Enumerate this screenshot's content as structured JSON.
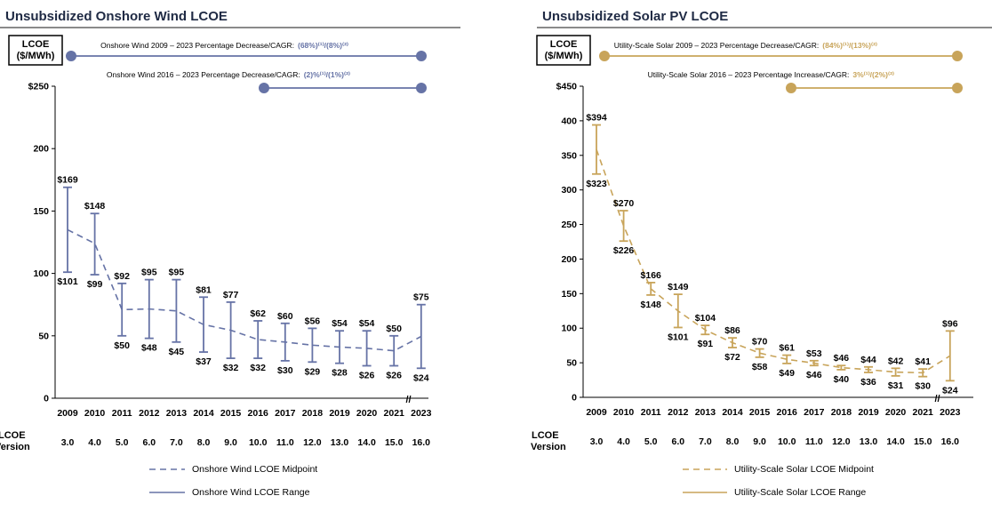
{
  "chart_data": [
    {
      "type": "range",
      "title": "Unsubsidized Onshore Wind LCOE",
      "ylabel": "LCOE ($/MWh)",
      "xlabel": "LCOE Version",
      "ylim": [
        0,
        250
      ],
      "yticks": [
        0,
        50,
        100,
        150,
        200,
        250
      ],
      "ytick_labels": [
        "0",
        "50",
        "100",
        "150",
        "200",
        "$250"
      ],
      "categories": [
        "2009",
        "2010",
        "2011",
        "2012",
        "2013",
        "2014",
        "2015",
        "2016",
        "2017",
        "2018",
        "2019",
        "2020",
        "2021",
        "2023"
      ],
      "versions": [
        "3.0",
        "4.0",
        "5.0",
        "6.0",
        "7.0",
        "8.0",
        "9.0",
        "10.0",
        "11.0",
        "12.0",
        "13.0",
        "14.0",
        "15.0",
        "16.0"
      ],
      "high": [
        169,
        148,
        92,
        95,
        95,
        81,
        77,
        62,
        60,
        56,
        54,
        54,
        50,
        75
      ],
      "low": [
        101,
        99,
        50,
        48,
        45,
        37,
        32,
        32,
        30,
        29,
        28,
        26,
        26,
        24
      ],
      "midpoint": [
        135,
        124,
        71,
        71.5,
        70,
        59,
        54.5,
        47,
        45,
        42.5,
        41,
        40,
        38,
        49.5
      ],
      "high_labels": [
        "$169",
        "$148",
        "$92",
        "$95",
        "$95",
        "$81",
        "$77",
        "$62",
        "$60",
        "$56",
        "$54",
        "$54",
        "$50",
        "$75"
      ],
      "low_labels": [
        "$101",
        "$99",
        "$50",
        "$48",
        "$45",
        "$37",
        "$32",
        "$32",
        "$30",
        "$29",
        "$28",
        "$26",
        "$26",
        "$24"
      ],
      "color": "#6673a6",
      "axis_break": "//",
      "legend": [
        "Onshore Wind LCOE Midpoint",
        "Onshore Wind LCOE Range"
      ],
      "annotations": [
        {
          "text": "Onshore Wind 2009 – 2023 Percentage Decrease/CAGR:",
          "value": "(68%)⁽¹⁾/(8%)⁽²⁾"
        },
        {
          "text": "Onshore Wind 2016 – 2023 Percentage Decrease/CAGR:",
          "value": "(2)%⁽¹⁾/(1%)⁽²⁾"
        }
      ]
    },
    {
      "type": "range",
      "title": "Unsubsidized Solar PV LCOE",
      "ylabel": "LCOE ($/MWh)",
      "xlabel": "LCOE Version",
      "ylim": [
        0,
        450
      ],
      "yticks": [
        0,
        50,
        100,
        150,
        200,
        250,
        300,
        350,
        400,
        450
      ],
      "ytick_labels": [
        "0",
        "50",
        "100",
        "150",
        "200",
        "250",
        "300",
        "350",
        "400",
        "$450"
      ],
      "categories": [
        "2009",
        "2010",
        "2011",
        "2012",
        "2013",
        "2014",
        "2015",
        "2016",
        "2017",
        "2018",
        "2019",
        "2020",
        "2021",
        "2023"
      ],
      "versions": [
        "3.0",
        "4.0",
        "5.0",
        "6.0",
        "7.0",
        "8.0",
        "9.0",
        "10.0",
        "11.0",
        "12.0",
        "13.0",
        "14.0",
        "15.0",
        "16.0"
      ],
      "high": [
        394,
        270,
        166,
        149,
        104,
        86,
        70,
        61,
        53,
        46,
        44,
        42,
        41,
        96
      ],
      "low": [
        323,
        226,
        148,
        101,
        91,
        72,
        58,
        49,
        46,
        40,
        36,
        31,
        30,
        24
      ],
      "midpoint": [
        358.5,
        248,
        157,
        125,
        97.5,
        79,
        64,
        55,
        49.5,
        43,
        40,
        36.5,
        35.5,
        60
      ],
      "high_labels": [
        "$394",
        "$270",
        "$166",
        "$149",
        "$104",
        "$86",
        "$70",
        "$61",
        "$53",
        "$46",
        "$44",
        "$42",
        "$41",
        "$96"
      ],
      "low_labels": [
        "$323",
        "$226",
        "$148",
        "$101",
        "$91",
        "$72",
        "$58",
        "$49",
        "$46",
        "$40",
        "$36",
        "$31",
        "$30",
        "$24"
      ],
      "color": "#c8a45a",
      "axis_break": "//",
      "legend": [
        "Utility-Scale Solar LCOE Midpoint",
        "Utility-Scale Solar LCOE Range"
      ],
      "annotations": [
        {
          "text": "Utility-Scale Solar 2009 – 2023 Percentage Decrease/CAGR:",
          "value": "(84%)⁽¹⁾/(13%)⁽²⁾"
        },
        {
          "text": "Utility-Scale Solar 2016 – 2023 Percentage Increase/CAGR:",
          "value": "3%⁽¹⁾/(2%)⁽²⁾"
        }
      ]
    }
  ]
}
